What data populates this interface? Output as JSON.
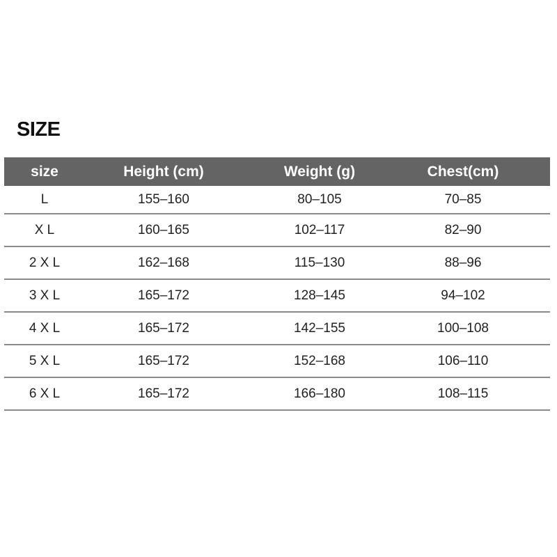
{
  "title": "SIZE",
  "headers": [
    "size",
    "Height (cm)",
    "Weight (g)",
    "Chest(cm)"
  ],
  "rows": [
    [
      "L",
      "155-160",
      "80-105",
      "70-85"
    ],
    [
      "X L",
      "160-165",
      "102-117",
      "82-90"
    ],
    [
      "2 X L",
      "162-168",
      "115-130",
      "88-96"
    ],
    [
      "3 X L",
      "165-172",
      "128-145",
      "94-102"
    ],
    [
      "4 X L",
      "165-172",
      "142-155",
      "100-108"
    ],
    [
      "5 X L",
      "165-172",
      "152-168",
      "106-110"
    ],
    [
      "6 X L",
      "165-172",
      "166-180",
      "108-115"
    ]
  ],
  "colors": {
    "header_bg": "#646464",
    "header_text": "#ffffff",
    "divider": "#8a8a8a"
  }
}
